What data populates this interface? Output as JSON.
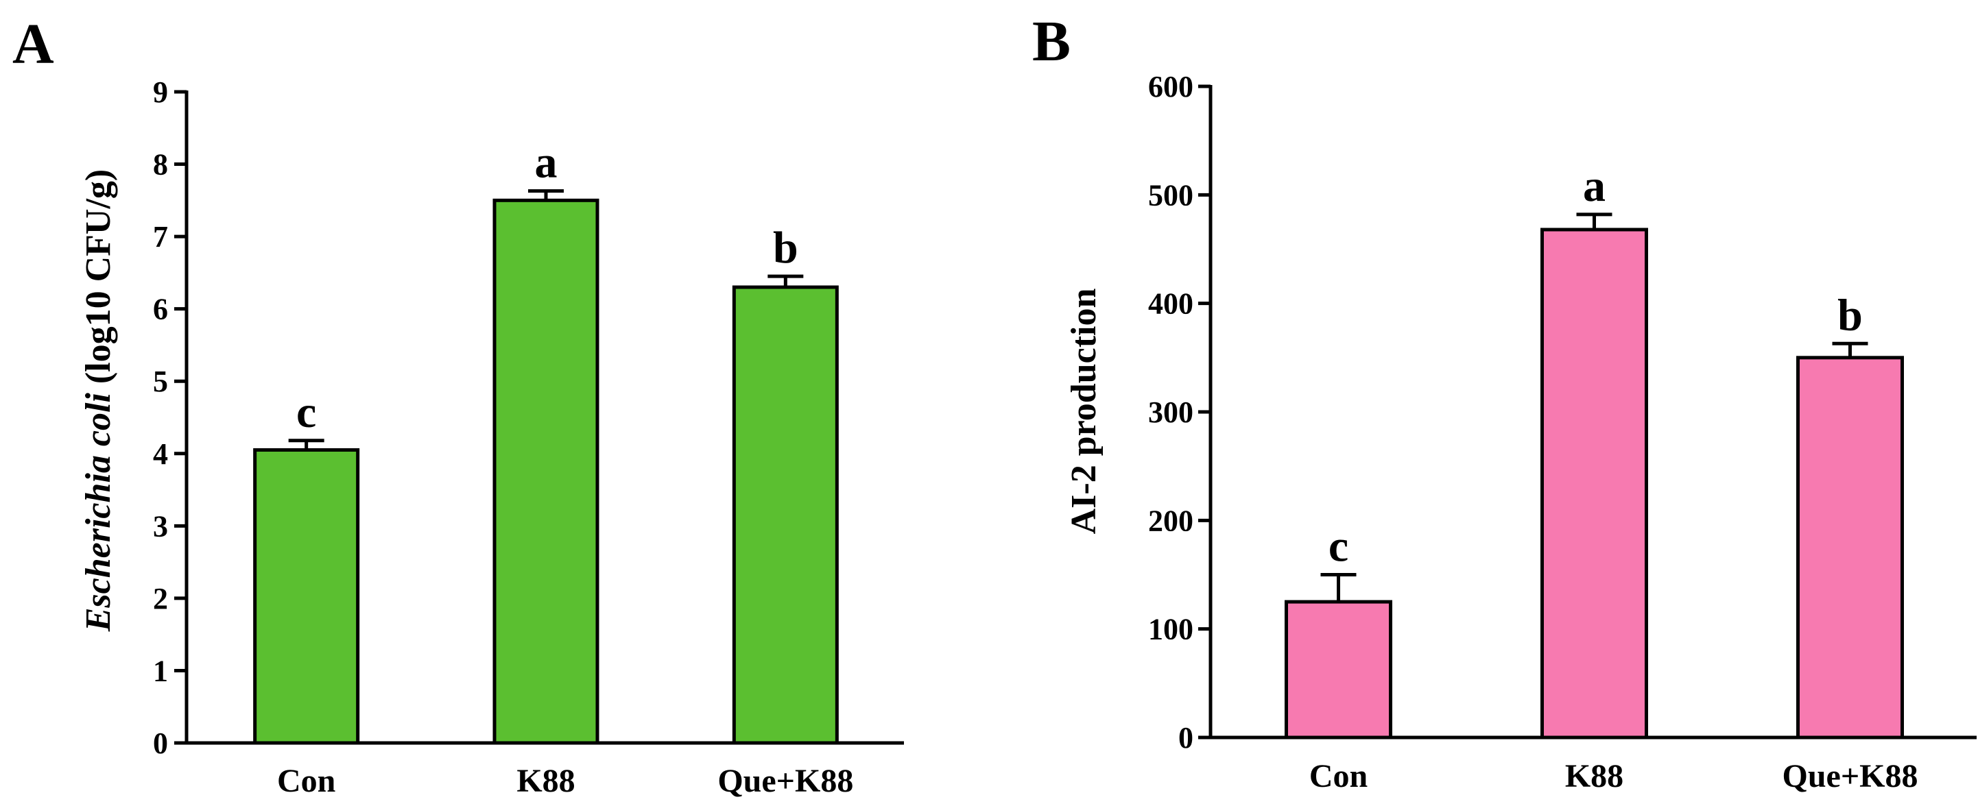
{
  "chart_data": [
    {
      "panel_label": "A",
      "type": "bar",
      "categories": [
        "Con",
        "K88",
        "Que+K88"
      ],
      "values": [
        4.05,
        7.5,
        6.3
      ],
      "errors": [
        0.13,
        0.13,
        0.15
      ],
      "significance": [
        "c",
        "a",
        "b"
      ],
      "ylabel_italic": "Escherichia coli",
      "ylabel_rest": " (log10 CFU/g)",
      "ylim": [
        0,
        9
      ],
      "yticks": [
        "0",
        "1",
        "2",
        "3",
        "4",
        "5",
        "6",
        "7",
        "8",
        "9"
      ],
      "bar_color": "#5bbf30"
    },
    {
      "panel_label": "B",
      "type": "bar",
      "categories": [
        "Con",
        "K88",
        "Que+K88"
      ],
      "values": [
        125,
        468,
        350
      ],
      "errors": [
        25,
        14,
        13
      ],
      "significance": [
        "c",
        "a",
        "b"
      ],
      "ylabel": "AI-2 production",
      "ylim": [
        0,
        600
      ],
      "yticks": [
        "0",
        "100",
        "200",
        "300",
        "400",
        "500",
        "600"
      ],
      "bar_color": "#f77ab0"
    }
  ]
}
